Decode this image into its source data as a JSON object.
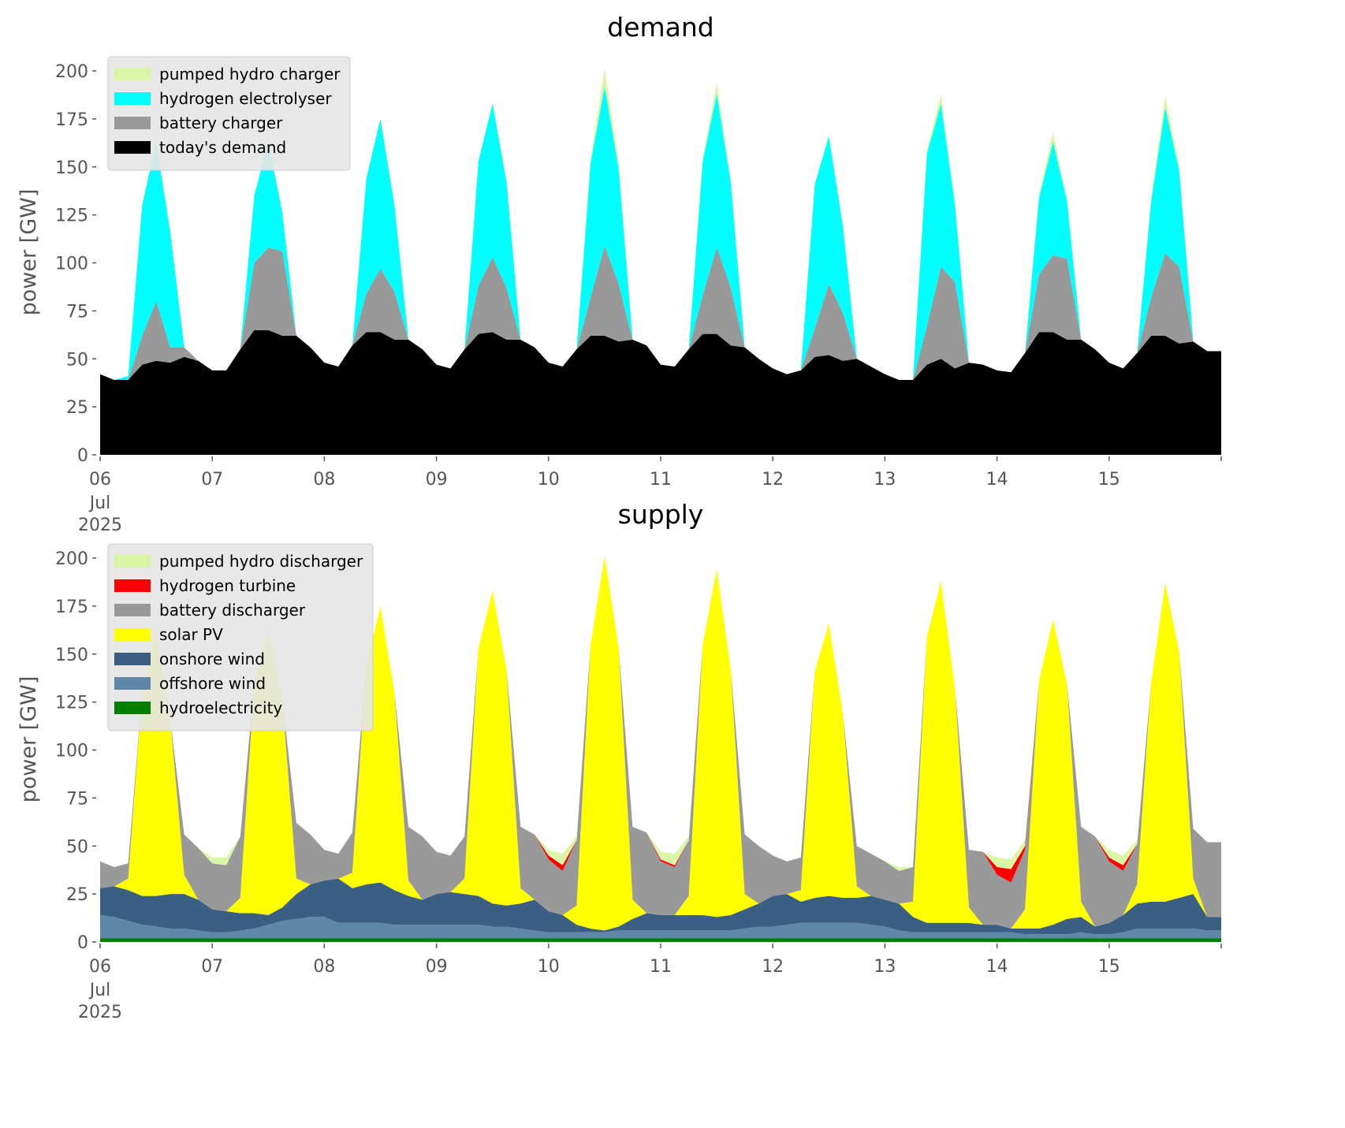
{
  "colors": {
    "pumped_hydro": "#d9f7a6",
    "hydrogen_electrolyser": "#00ffff",
    "battery": "#999999",
    "todays_demand": "#000000",
    "hydrogen_turbine": "#ff0000",
    "solar_pv": "#ffff00",
    "onshore_wind": "#3a5f82",
    "offshore_wind": "#5f87a8",
    "hydroelectricity": "#008000"
  },
  "chart_data": [
    {
      "type": "area",
      "stacked": true,
      "title": "demand",
      "ylabel": "power [GW]",
      "xlabel": "",
      "ylim": [
        0,
        200
      ],
      "xlim": [
        "2025-07-06 00:00",
        "2025-07-16 00:00"
      ],
      "yticks": [
        0,
        25,
        50,
        75,
        100,
        125,
        150,
        175,
        200
      ],
      "xtick_labels": [
        "06",
        "07",
        "08",
        "09",
        "10",
        "11",
        "12",
        "13",
        "14",
        "15"
      ],
      "xtick_first_sublabels": [
        "Jul",
        "2025"
      ],
      "grid": false,
      "legend_position": "top-left",
      "time_step": "3h",
      "x_start": "2025-07-06 00:00",
      "series": [
        {
          "name": "today's demand",
          "color": "#000000",
          "values": [
            42,
            39,
            39,
            47,
            49,
            48,
            51,
            49,
            44,
            44,
            55,
            65,
            65,
            62,
            62,
            56,
            48,
            46,
            57,
            64,
            64,
            60,
            60,
            55,
            47,
            45,
            55,
            63,
            64,
            60,
            60,
            56,
            48,
            46,
            55,
            62,
            62,
            59,
            60,
            57,
            47,
            46,
            55,
            63,
            63,
            57,
            56,
            50,
            45,
            42,
            44,
            51,
            52,
            49,
            50,
            46,
            42,
            39,
            39,
            47,
            50,
            45,
            48,
            47,
            44,
            43,
            53,
            64,
            64,
            60,
            60,
            55,
            48,
            45,
            53,
            62,
            62,
            58,
            59,
            54
          ]
        },
        {
          "name": "battery charger",
          "color": "#999999",
          "values": [
            0,
            0,
            0,
            15,
            31,
            8,
            5,
            0,
            0,
            0,
            0,
            35,
            43,
            44,
            0,
            0,
            0,
            0,
            0,
            20,
            33,
            25,
            0,
            0,
            0,
            0,
            0,
            25,
            39,
            27,
            0,
            0,
            0,
            0,
            0,
            20,
            47,
            30,
            0,
            0,
            0,
            0,
            0,
            20,
            45,
            30,
            0,
            0,
            0,
            0,
            0,
            15,
            37,
            25,
            0,
            0,
            0,
            0,
            0,
            20,
            48,
            45,
            0,
            0,
            0,
            0,
            0,
            30,
            40,
            42,
            0,
            0,
            0,
            0,
            0,
            20,
            43,
            40,
            0,
            0
          ]
        },
        {
          "name": "hydrogen electrolyser",
          "color": "#00ffff",
          "values": [
            0,
            0,
            2,
            68,
            83,
            60,
            0,
            0,
            0,
            0,
            0,
            35,
            55,
            20,
            0,
            0,
            0,
            0,
            0,
            60,
            78,
            45,
            0,
            0,
            0,
            0,
            0,
            65,
            80,
            55,
            0,
            0,
            0,
            0,
            0,
            70,
            83,
            60,
            0,
            0,
            0,
            0,
            0,
            70,
            80,
            55,
            0,
            0,
            0,
            0,
            0,
            75,
            77,
            45,
            0,
            0,
            0,
            0,
            0,
            90,
            85,
            40,
            0,
            0,
            0,
            0,
            0,
            40,
            59,
            30,
            0,
            0,
            0,
            0,
            0,
            50,
            76,
            50,
            0,
            0
          ]
        },
        {
          "name": "pumped hydro charger",
          "color": "#d9f7a6",
          "values": [
            0,
            0,
            0,
            0,
            0,
            0,
            0,
            0,
            0,
            0,
            0,
            0,
            0,
            0,
            0,
            0,
            0,
            0,
            0,
            0,
            0,
            0,
            0,
            0,
            0,
            0,
            0,
            0,
            0,
            0,
            0,
            0,
            0,
            0,
            0,
            3,
            9,
            4,
            0,
            0,
            0,
            0,
            0,
            2,
            6,
            2,
            0,
            0,
            0,
            0,
            0,
            0,
            0,
            0,
            0,
            0,
            0,
            0,
            0,
            2,
            5,
            2,
            0,
            0,
            0,
            0,
            0,
            2,
            5,
            2,
            0,
            0,
            0,
            0,
            0,
            3,
            6,
            3,
            0,
            0
          ]
        }
      ]
    },
    {
      "type": "area",
      "stacked": true,
      "title": "supply",
      "ylabel": "power [GW]",
      "xlabel": "",
      "ylim": [
        0,
        200
      ],
      "xlim": [
        "2025-07-06 00:00",
        "2025-07-16 00:00"
      ],
      "yticks": [
        0,
        25,
        50,
        75,
        100,
        125,
        150,
        175,
        200
      ],
      "xtick_labels": [
        "06",
        "07",
        "08",
        "09",
        "10",
        "11",
        "12",
        "13",
        "14",
        "15"
      ],
      "xtick_first_sublabels": [
        "Jul",
        "2025"
      ],
      "grid": false,
      "legend_position": "top-left",
      "time_step": "3h",
      "x_start": "2025-07-06 00:00",
      "series": [
        {
          "name": "hydroelectricity",
          "color": "#008000",
          "values": [
            2,
            2,
            2,
            2,
            2,
            2,
            2,
            2,
            2,
            2,
            2,
            2,
            2,
            2,
            2,
            2,
            2,
            2,
            2,
            2,
            2,
            2,
            2,
            2,
            2,
            2,
            2,
            2,
            2,
            2,
            2,
            2,
            2,
            2,
            2,
            2,
            2,
            2,
            2,
            2,
            2,
            2,
            2,
            2,
            2,
            2,
            2,
            2,
            2,
            2,
            2,
            2,
            2,
            2,
            2,
            2,
            2,
            2,
            2,
            2,
            2,
            2,
            2,
            2,
            2,
            2,
            2,
            2,
            2,
            2,
            2,
            2,
            2,
            2,
            2,
            2,
            2,
            2,
            2,
            2
          ]
        },
        {
          "name": "offshore wind",
          "color": "#5f87a8",
          "values": [
            12,
            11,
            9,
            7,
            6,
            5,
            5,
            4,
            3,
            3,
            4,
            5,
            7,
            9,
            10,
            11,
            11,
            8,
            8,
            8,
            8,
            7,
            7,
            7,
            7,
            7,
            7,
            7,
            6,
            6,
            5,
            4,
            3,
            3,
            3,
            3,
            3,
            4,
            4,
            4,
            4,
            4,
            4,
            4,
            4,
            4,
            5,
            6,
            6,
            7,
            8,
            8,
            8,
            8,
            8,
            7,
            6,
            4,
            3,
            3,
            3,
            3,
            3,
            3,
            3,
            3,
            2,
            2,
            2,
            2,
            3,
            2,
            2,
            3,
            5,
            5,
            5,
            5,
            5,
            4
          ]
        },
        {
          "name": "onshore wind",
          "color": "#3a5f82",
          "values": [
            14,
            16,
            16,
            15,
            16,
            18,
            18,
            16,
            12,
            11,
            9,
            8,
            5,
            7,
            13,
            17,
            19,
            23,
            18,
            20,
            21,
            18,
            15,
            13,
            16,
            17,
            16,
            15,
            12,
            11,
            13,
            16,
            11,
            9,
            4,
            2,
            1,
            2,
            6,
            9,
            8,
            8,
            8,
            8,
            7,
            8,
            10,
            12,
            16,
            16,
            11,
            13,
            14,
            13,
            13,
            15,
            14,
            14,
            8,
            5,
            5,
            5,
            5,
            4,
            4,
            2,
            3,
            3,
            5,
            8,
            8,
            4,
            6,
            9,
            13,
            14,
            14,
            16,
            18,
            7
          ]
        },
        {
          "name": "solar PV",
          "color": "#ffff00",
          "values": [
            0,
            0,
            6,
            106,
            139,
            91,
            10,
            0,
            0,
            0,
            8,
            120,
            149,
            108,
            8,
            0,
            0,
            0,
            8,
            114,
            144,
            103,
            8,
            0,
            0,
            0,
            8,
            129,
            163,
            123,
            8,
            0,
            0,
            0,
            10,
            148,
            195,
            145,
            10,
            0,
            0,
            0,
            10,
            141,
            181,
            128,
            8,
            0,
            0,
            0,
            6,
            118,
            142,
            96,
            6,
            0,
            0,
            0,
            8,
            149,
            178,
            122,
            8,
            0,
            0,
            0,
            10,
            129,
            159,
            122,
            8,
            0,
            0,
            0,
            10,
            114,
            166,
            128,
            8,
            0
          ]
        },
        {
          "name": "battery discharger",
          "color": "#999999",
          "values": [
            14,
            10,
            8,
            0,
            0,
            0,
            21,
            27,
            24,
            24,
            32,
            0,
            0,
            0,
            29,
            26,
            16,
            13,
            21,
            0,
            0,
            0,
            28,
            33,
            22,
            19,
            22,
            0,
            0,
            0,
            32,
            34,
            27,
            23,
            34,
            0,
            0,
            0,
            38,
            42,
            28,
            25,
            29,
            0,
            0,
            0,
            31,
            30,
            21,
            17,
            17,
            0,
            0,
            0,
            21,
            22,
            20,
            17,
            18,
            0,
            0,
            0,
            30,
            38,
            26,
            24,
            31,
            0,
            0,
            0,
            39,
            47,
            32,
            23,
            21,
            0,
            0,
            0,
            26,
            39
          ]
        },
        {
          "name": "hydrogen turbine",
          "color": "#ff0000",
          "values": [
            0,
            0,
            0,
            0,
            0,
            0,
            0,
            0,
            0,
            0,
            0,
            0,
            0,
            0,
            0,
            0,
            0,
            0,
            0,
            0,
            0,
            0,
            0,
            0,
            0,
            0,
            0,
            0,
            0,
            0,
            0,
            0,
            2,
            3,
            0,
            0,
            0,
            0,
            0,
            0,
            1,
            1,
            0,
            0,
            0,
            0,
            0,
            0,
            0,
            0,
            0,
            0,
            0,
            0,
            0,
            0,
            0,
            0,
            0,
            0,
            0,
            0,
            0,
            0,
            4,
            7,
            2,
            0,
            0,
            0,
            0,
            0,
            2,
            3,
            0,
            0,
            0,
            0,
            0,
            0
          ]
        },
        {
          "name": "pumped hydro discharger",
          "color": "#d9f7a6",
          "values": [
            0,
            0,
            0,
            0,
            0,
            0,
            0,
            0,
            3,
            4,
            0,
            0,
            0,
            0,
            0,
            0,
            0,
            0,
            0,
            0,
            0,
            0,
            0,
            0,
            0,
            0,
            0,
            0,
            0,
            0,
            0,
            0,
            3,
            6,
            2,
            0,
            0,
            0,
            0,
            0,
            4,
            6,
            2,
            0,
            0,
            0,
            0,
            0,
            0,
            0,
            0,
            0,
            0,
            0,
            0,
            0,
            0,
            2,
            0,
            0,
            0,
            0,
            0,
            0,
            5,
            5,
            3,
            0,
            0,
            0,
            0,
            0,
            4,
            5,
            2,
            0,
            0,
            0,
            0,
            0
          ]
        }
      ],
      "legend_order": [
        "pumped hydro discharger",
        "hydrogen turbine",
        "battery discharger",
        "solar PV",
        "onshore wind",
        "offshore wind",
        "hydroelectricity"
      ]
    }
  ],
  "demand_legend_order": [
    "pumped hydro charger",
    "hydrogen electrolyser",
    "battery charger",
    "today's demand"
  ]
}
